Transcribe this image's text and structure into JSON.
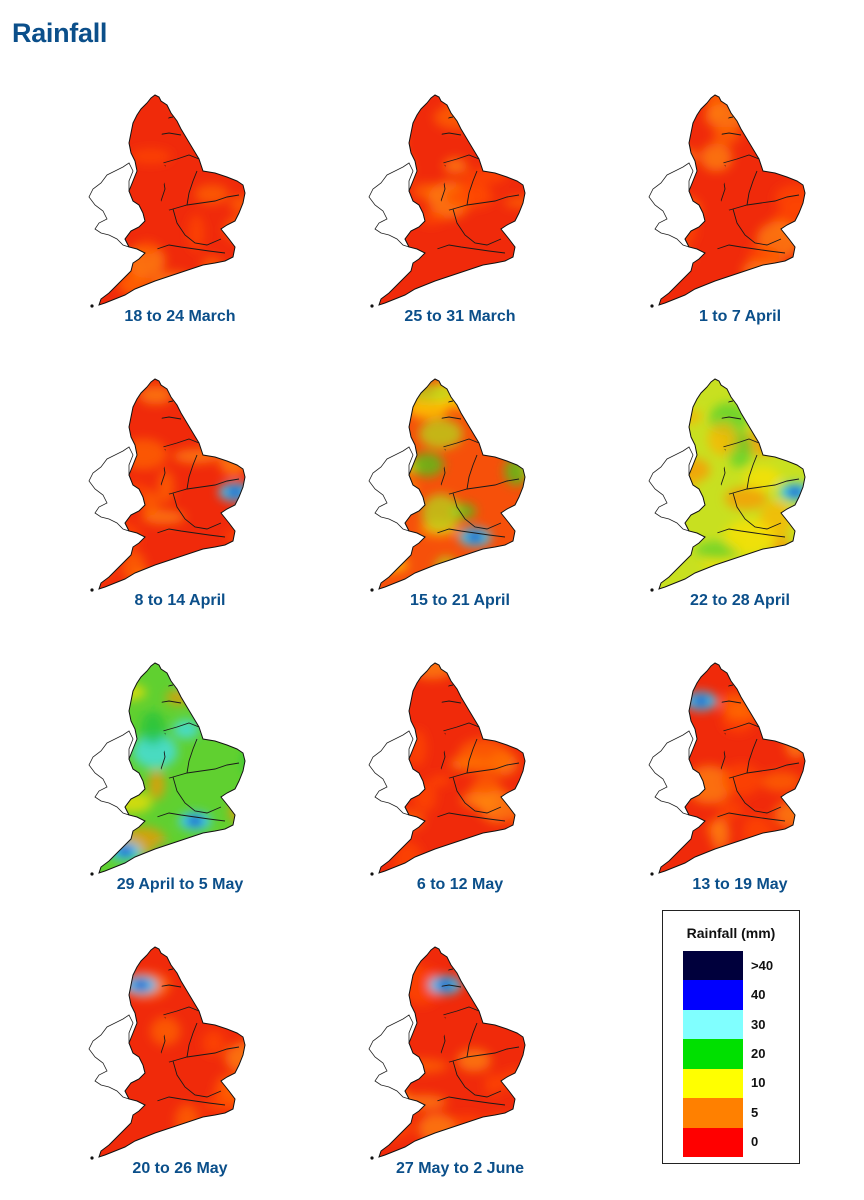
{
  "title": "Rainfall",
  "panels": [
    {
      "label": "18 to 24 March",
      "dominant": "dry",
      "wet_spots": []
    },
    {
      "label": "25 to 31 March",
      "dominant": "dry",
      "wet_spots": []
    },
    {
      "label": "1 to 7 April",
      "dominant": "dry",
      "wet_spots": []
    },
    {
      "label": "8 to 14 April",
      "dominant": "dry",
      "wet_spots": [
        "east"
      ]
    },
    {
      "label": "15 to 21 April",
      "dominant": "mixed",
      "wet_spots": [
        "south"
      ]
    },
    {
      "label": "22 to 28 April",
      "dominant": "moist",
      "wet_spots": [
        "east"
      ]
    },
    {
      "label": "29 April to 5 May",
      "dominant": "wet",
      "wet_spots": [
        "southwest",
        "south"
      ]
    },
    {
      "label": "6 to 12 May",
      "dominant": "dry",
      "wet_spots": []
    },
    {
      "label": "13 to 19 May",
      "dominant": "dry",
      "wet_spots": [
        "northwest"
      ]
    },
    {
      "label": "20 to 26 May",
      "dominant": "dry",
      "wet_spots": [
        "northwest"
      ]
    },
    {
      "label": "27 May to 2 June",
      "dominant": "dry",
      "wet_spots": [
        "north"
      ]
    }
  ],
  "legend": {
    "title": "Rainfall (mm)",
    "labels": [
      ">40",
      "40",
      "30",
      "20",
      "10",
      "5",
      "0"
    ],
    "colors": [
      "#00003c",
      "#0000ff",
      "#80ffff",
      "#00e000",
      "#ffff00",
      "#ff8000",
      "#ff0000"
    ]
  }
}
